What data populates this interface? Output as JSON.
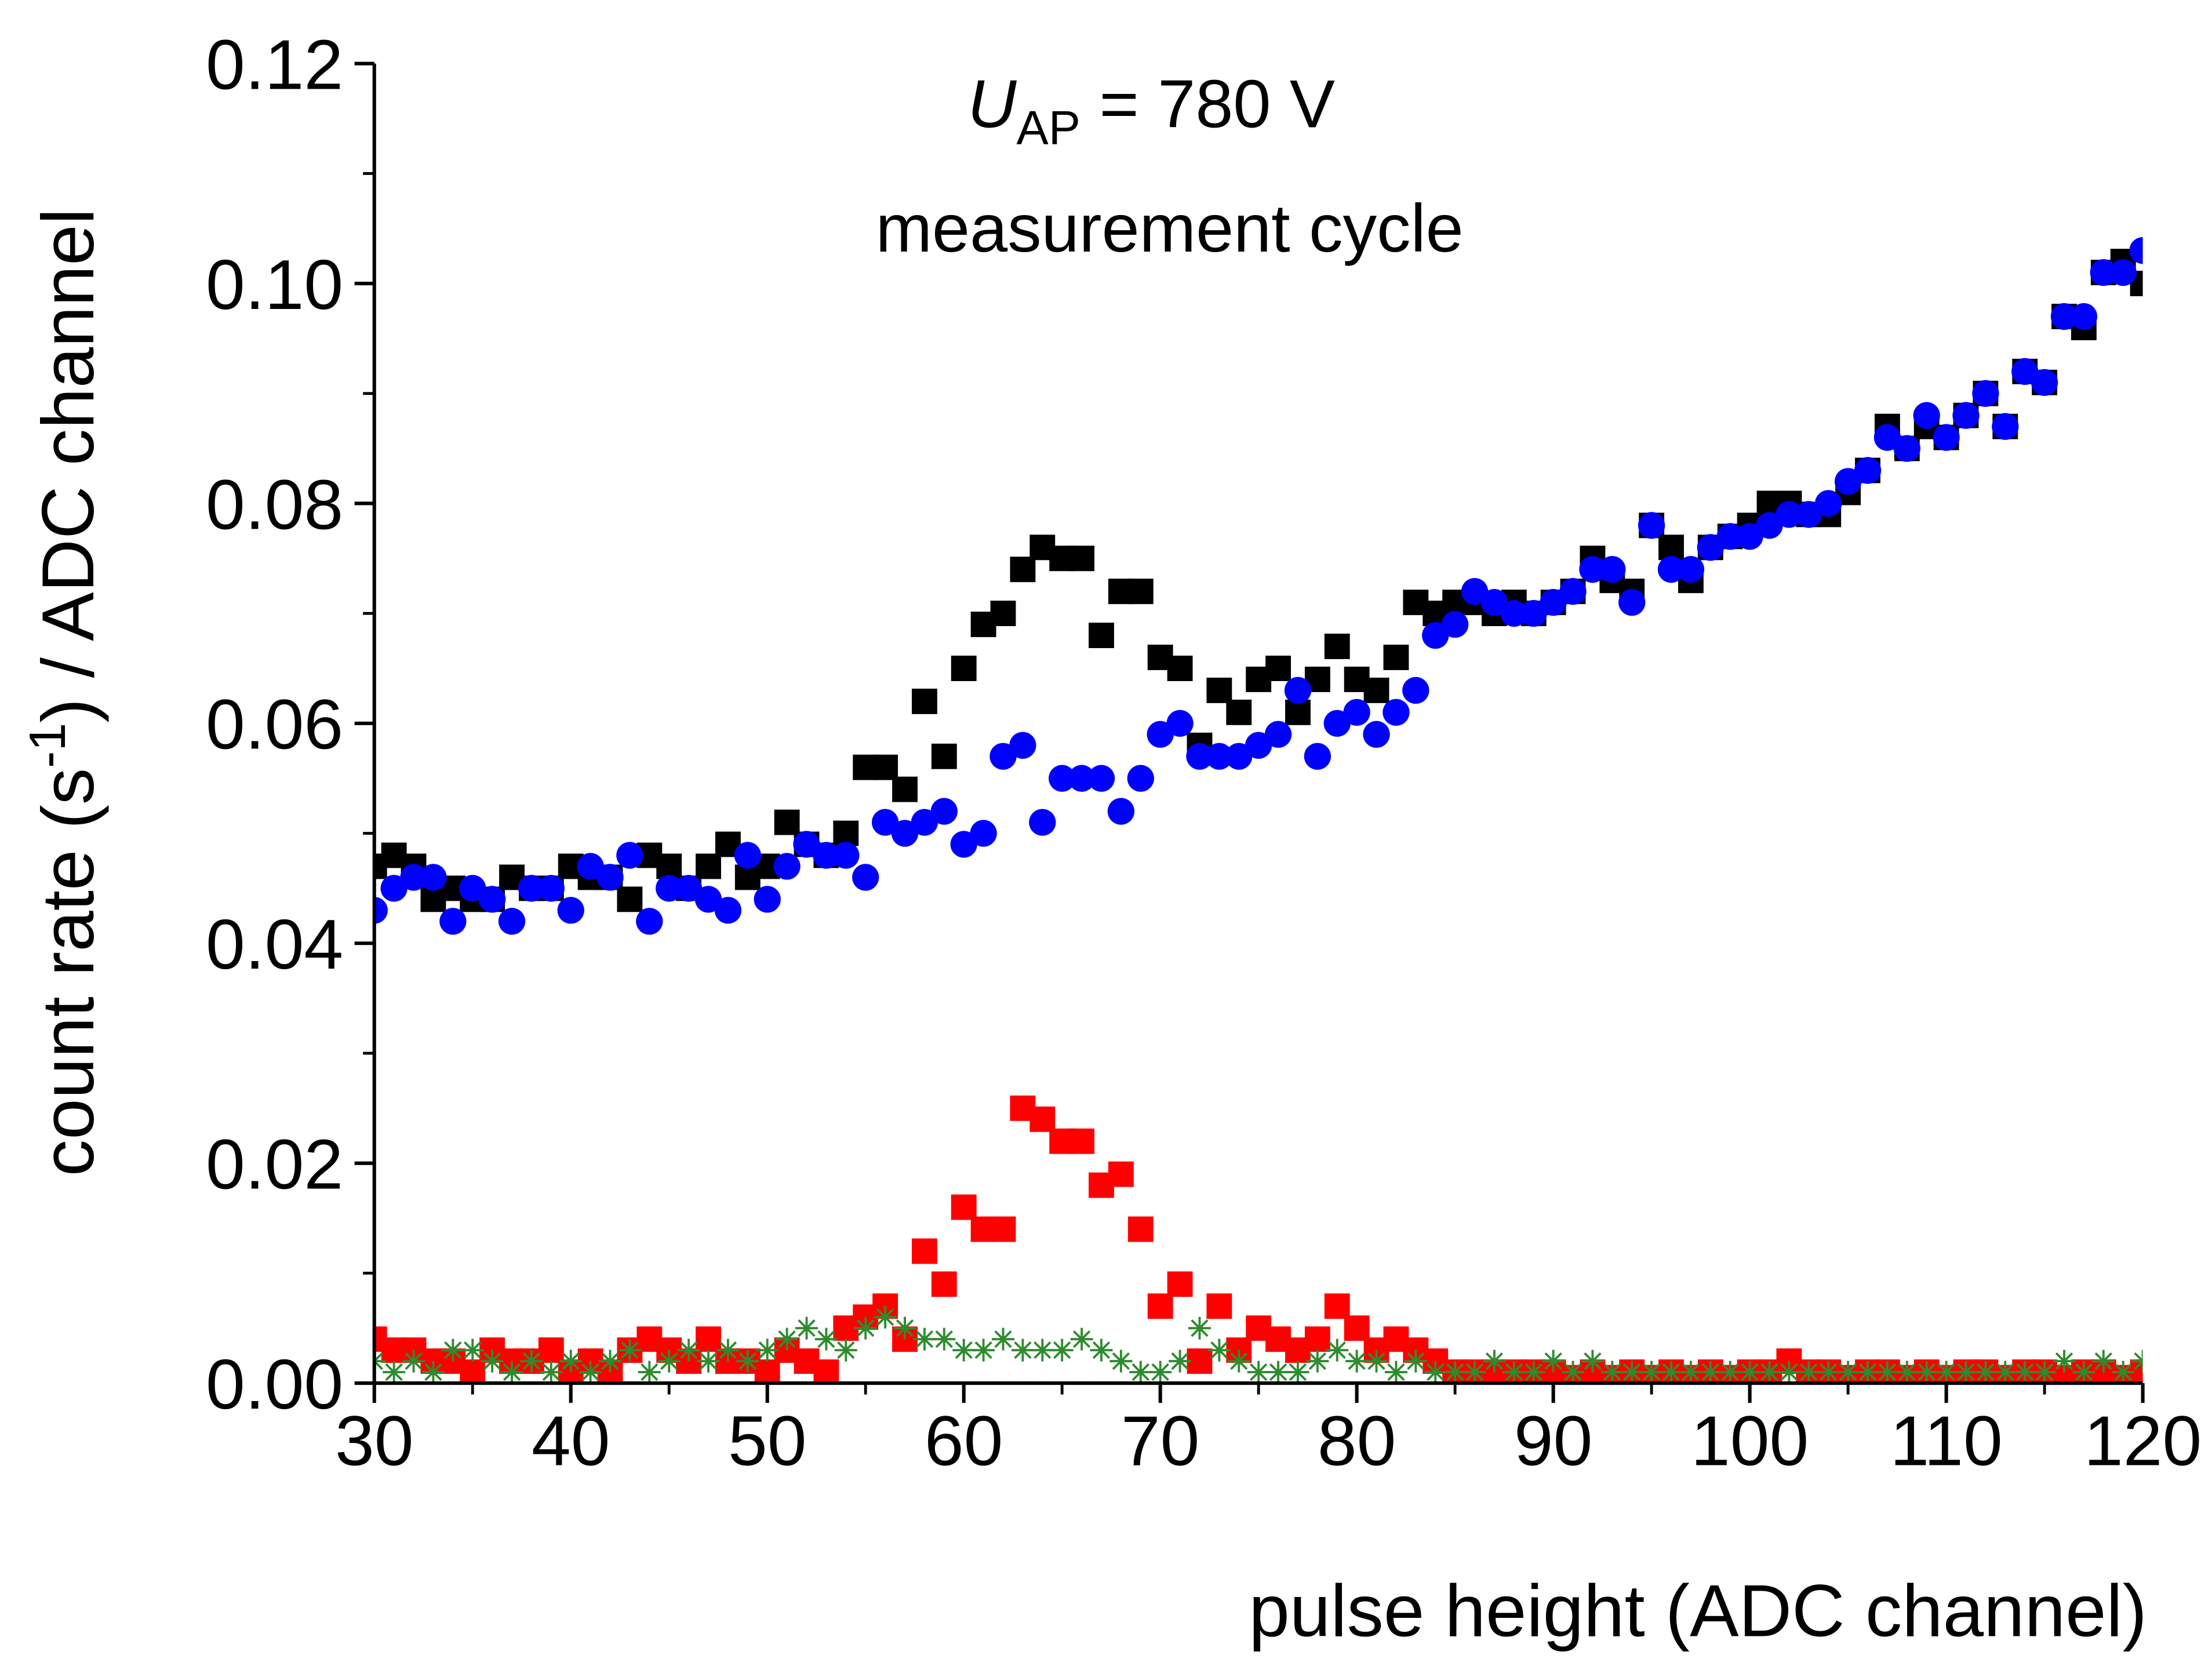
{
  "chart_data": {
    "type": "scatter",
    "title": {
      "symbol": "U",
      "subscript": "AP",
      "text": " = 780 V"
    },
    "annotation": "measurement cycle",
    "xlabel": "pulse height (ADC channel)",
    "ylabel": {
      "before": "count rate (s",
      "superscript": "-1",
      "after": ") / ADC channel"
    },
    "xlim": [
      30,
      120
    ],
    "ylim": [
      0,
      0.12
    ],
    "xticks": [
      30,
      40,
      50,
      60,
      70,
      80,
      90,
      100,
      110,
      120
    ],
    "yticks": [
      {
        "value": 0,
        "label": "0.00"
      },
      {
        "value": 0.02,
        "label": "0.02"
      },
      {
        "value": 0.04,
        "label": "0.04"
      },
      {
        "value": 0.06,
        "label": "0.06"
      },
      {
        "value": 0.08,
        "label": "0.08"
      },
      {
        "value": 0.1,
        "label": "0.10"
      },
      {
        "value": 0.12,
        "label": "0.12"
      }
    ],
    "x": [
      30,
      31,
      32,
      33,
      34,
      35,
      36,
      37,
      38,
      39,
      40,
      41,
      42,
      43,
      44,
      45,
      46,
      47,
      48,
      49,
      50,
      51,
      52,
      53,
      54,
      55,
      56,
      57,
      58,
      59,
      60,
      61,
      62,
      63,
      64,
      65,
      66,
      67,
      68,
      69,
      70,
      71,
      72,
      73,
      74,
      75,
      76,
      77,
      78,
      79,
      80,
      81,
      82,
      83,
      84,
      85,
      86,
      87,
      88,
      89,
      90,
      91,
      92,
      93,
      94,
      95,
      96,
      97,
      98,
      99,
      100,
      101,
      102,
      103,
      104,
      105,
      106,
      107,
      108,
      109,
      110,
      111,
      112,
      113,
      114,
      115,
      116,
      117,
      118,
      119,
      120
    ],
    "series": [
      {
        "color": "#000000",
        "marker": "square",
        "values": [
          0.047,
          0.048,
          0.047,
          0.044,
          0.045,
          0.044,
          0.044,
          0.046,
          0.045,
          0.045,
          0.047,
          0.046,
          0.046,
          0.044,
          0.048,
          0.047,
          0.045,
          0.047,
          0.049,
          0.046,
          0.047,
          0.051,
          0.049,
          0.048,
          0.05,
          0.056,
          0.056,
          0.054,
          0.062,
          0.057,
          0.065,
          0.069,
          0.07,
          0.074,
          0.076,
          0.075,
          0.075,
          0.068,
          0.072,
          0.072,
          0.066,
          0.065,
          0.058,
          0.063,
          0.061,
          0.064,
          0.065,
          0.061,
          0.064,
          0.067,
          0.064,
          0.063,
          0.066,
          0.071,
          0.07,
          0.071,
          0.071,
          0.07,
          0.071,
          0.07,
          0.071,
          0.072,
          0.075,
          0.073,
          0.072,
          0.078,
          0.076,
          0.073,
          0.076,
          0.077,
          0.078,
          0.08,
          0.08,
          0.079,
          0.079,
          0.081,
          0.083,
          0.087,
          0.085,
          0.087,
          0.086,
          0.088,
          0.09,
          0.087,
          0.092,
          0.091,
          0.097,
          0.096,
          0.101,
          0.102,
          0.1
        ]
      },
      {
        "color": "#0000ff",
        "marker": "circle",
        "values": [
          0.043,
          0.045,
          0.046,
          0.046,
          0.042,
          0.045,
          0.044,
          0.042,
          0.045,
          0.045,
          0.043,
          0.047,
          0.046,
          0.048,
          0.042,
          0.045,
          0.045,
          0.044,
          0.043,
          0.048,
          0.044,
          0.047,
          0.049,
          0.048,
          0.048,
          0.046,
          0.051,
          0.05,
          0.051,
          0.052,
          0.049,
          0.05,
          0.057,
          0.058,
          0.051,
          0.055,
          0.055,
          0.055,
          0.052,
          0.055,
          0.059,
          0.06,
          0.057,
          0.057,
          0.057,
          0.058,
          0.059,
          0.063,
          0.057,
          0.06,
          0.061,
          0.059,
          0.061,
          0.063,
          0.068,
          0.069,
          0.072,
          0.071,
          0.07,
          0.07,
          0.071,
          0.072,
          0.074,
          0.074,
          0.071,
          0.078,
          0.074,
          0.074,
          0.076,
          0.077,
          0.077,
          0.078,
          0.079,
          0.079,
          0.08,
          0.082,
          0.083,
          0.086,
          0.085,
          0.088,
          0.086,
          0.088,
          0.09,
          0.087,
          0.092,
          0.091,
          0.097,
          0.097,
          0.101,
          0.101,
          0.103
        ]
      },
      {
        "color": "#ff0000",
        "marker": "square",
        "values": [
          0.004,
          0.003,
          0.003,
          0.002,
          0.002,
          0.001,
          0.003,
          0.002,
          0.002,
          0.003,
          0.001,
          0.002,
          0.001,
          0.003,
          0.004,
          0.003,
          0.002,
          0.004,
          0.002,
          0.002,
          0.001,
          0.003,
          0.002,
          0.001,
          0.005,
          0.006,
          0.007,
          0.004,
          0.012,
          0.009,
          0.016,
          0.014,
          0.014,
          0.025,
          0.024,
          0.022,
          0.022,
          0.018,
          0.019,
          0.014,
          0.007,
          0.009,
          0.002,
          0.007,
          0.003,
          0.005,
          0.004,
          0.003,
          0.004,
          0.007,
          0.005,
          0.003,
          0.004,
          0.003,
          0.002,
          0.001,
          0.001,
          0.001,
          0.001,
          0.001,
          0.001,
          0.0005,
          0.001,
          0.0005,
          0.001,
          0.0005,
          0.001,
          0.0005,
          0.001,
          0.0005,
          0.001,
          0.001,
          0.002,
          0.001,
          0.001,
          0.0005,
          0.001,
          0.001,
          0.0005,
          0.001,
          0.0005,
          0.001,
          0.001,
          0.0005,
          0.001,
          0.001,
          0.0005,
          0.001,
          0.001,
          0.0005,
          0.001
        ]
      },
      {
        "color": "#2e8b2e",
        "marker": "star",
        "values": [
          0.002,
          0.001,
          0.002,
          0.001,
          0.003,
          0.003,
          0.002,
          0.001,
          0.002,
          0.001,
          0.002,
          0.001,
          0.002,
          0.003,
          0.001,
          0.002,
          0.003,
          0.002,
          0.003,
          0.002,
          0.003,
          0.004,
          0.005,
          0.004,
          0.003,
          0.005,
          0.006,
          0.005,
          0.004,
          0.004,
          0.003,
          0.003,
          0.004,
          0.003,
          0.003,
          0.003,
          0.004,
          0.003,
          0.002,
          0.001,
          0.001,
          0.002,
          0.005,
          0.003,
          0.002,
          0.001,
          0.001,
          0.001,
          0.002,
          0.003,
          0.002,
          0.002,
          0.001,
          0.002,
          0.001,
          0.001,
          0.001,
          0.002,
          0.001,
          0.001,
          0.002,
          0.001,
          0.002,
          0.001,
          0.001,
          0.001,
          0.001,
          0.001,
          0.001,
          0.001,
          0.001,
          0.001,
          0.001,
          0.001,
          0.001,
          0.001,
          0.001,
          0.001,
          0.001,
          0.001,
          0.001,
          0.001,
          0.001,
          0.001,
          0.001,
          0.001,
          0.002,
          0.001,
          0.002,
          0.001,
          0.002
        ]
      }
    ]
  }
}
